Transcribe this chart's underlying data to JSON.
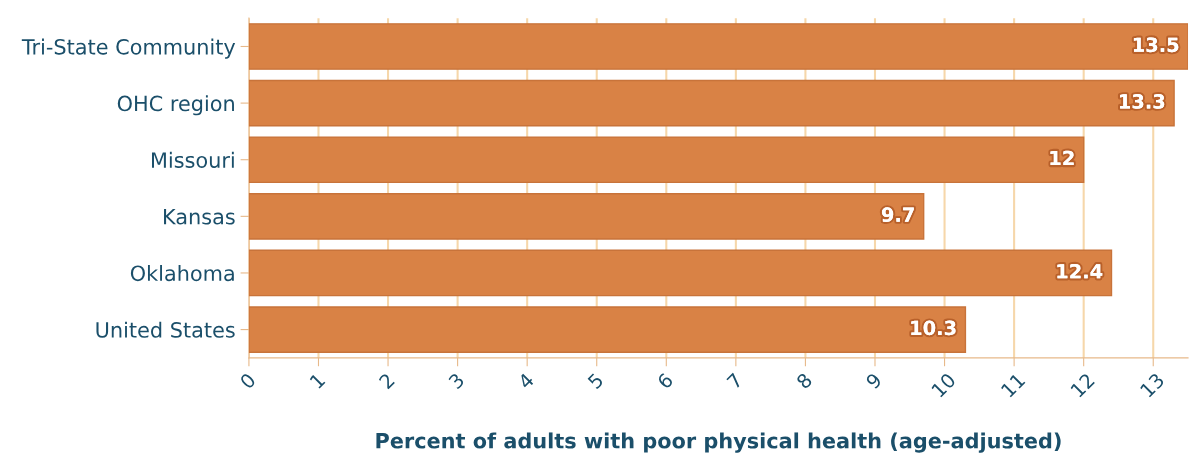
{
  "chart_data": {
    "type": "bar",
    "orientation": "horizontal",
    "xlabel": "Percent of adults with poor physical health (age-adjusted)",
    "categories": [
      "Tri-State Community",
      "OHC region",
      "Missouri",
      "Kansas",
      "Oklahoma",
      "United States"
    ],
    "values": [
      13.5,
      13.3,
      12,
      9.7,
      12.4,
      10.3
    ],
    "color": "#d98245",
    "data_labels": true,
    "xlim": [
      0,
      13.5
    ],
    "xticks": [
      0,
      1,
      2,
      3,
      4,
      5,
      6,
      7,
      8,
      9,
      10,
      11,
      12,
      13
    ],
    "grid": "x",
    "legend": false
  }
}
